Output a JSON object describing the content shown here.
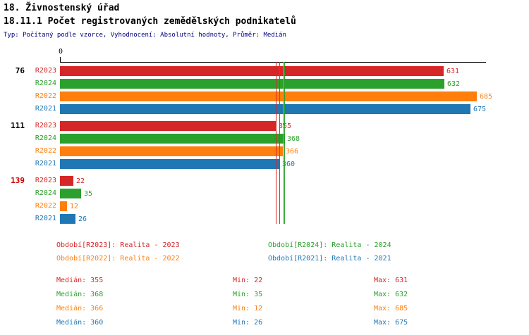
{
  "header": {
    "title": "18. Živnostenský úřad",
    "subtitle": "18.11.1 Počet registrovaných zemědělských podnikatelů",
    "meta": "Typ: Počítaný podle vzorce, Vyhodnocení: Absolutní hodnoty, Průměr: Medián"
  },
  "colors": {
    "R2023": "#d62728",
    "R2024": "#2ca02c",
    "R2022": "#ff7f0e",
    "R2021": "#1f77b4"
  },
  "chart_data": {
    "type": "bar",
    "orientation": "horizontal",
    "x_axis": {
      "zero_label": "0",
      "min": 0,
      "max": 700
    },
    "series_order": [
      "R2023",
      "R2024",
      "R2022",
      "R2021"
    ],
    "series_labels": {
      "R2023": "Realita - 2023",
      "R2024": "Realita - 2024",
      "R2022": "Realita - 2022",
      "R2021": "Realita - 2021"
    },
    "groups": [
      {
        "label": "76",
        "label_color": "#000000",
        "values": {
          "R2023": 631,
          "R2024": 632,
          "R2022": 685,
          "R2021": 675
        }
      },
      {
        "label": "111",
        "label_color": "#000000",
        "values": {
          "R2023": 355,
          "R2024": 368,
          "R2022": 366,
          "R2021": 360
        }
      },
      {
        "label": "139",
        "label_color": "#cc0000",
        "values": {
          "R2023": 22,
          "R2024": 35,
          "R2022": 12,
          "R2021": 26
        }
      }
    ],
    "median_lines": {
      "R2023": 355,
      "R2024": 368,
      "R2022": 366,
      "R2021": 360
    }
  },
  "legend": [
    {
      "series": "R2023",
      "label": "Období[R2023]: Realita - 2023"
    },
    {
      "series": "R2024",
      "label": "Období[R2024]: Realita - 2024"
    },
    {
      "series": "R2022",
      "label": "Období[R2022]: Realita - 2022"
    },
    {
      "series": "R2021",
      "label": "Období[R2021]: Realita - 2021"
    }
  ],
  "stats": [
    {
      "series": "R2023",
      "median": "Medián: 355",
      "min": "Min: 22",
      "max": "Max: 631"
    },
    {
      "series": "R2024",
      "median": "Medián: 368",
      "min": "Min: 35",
      "max": "Max: 632"
    },
    {
      "series": "R2022",
      "median": "Medián: 366",
      "min": "Min: 12",
      "max": "Max: 685"
    },
    {
      "series": "R2021",
      "median": "Medián: 360",
      "min": "Min: 26",
      "max": "Max: 675"
    }
  ]
}
